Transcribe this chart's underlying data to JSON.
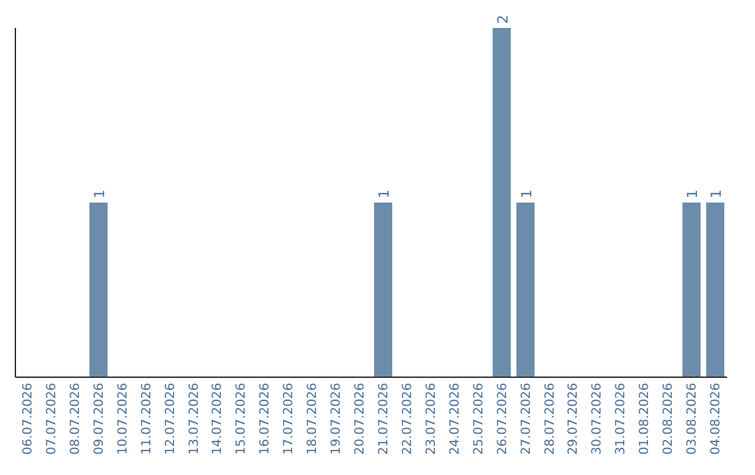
{
  "chart_data": {
    "type": "bar",
    "categories": [
      "06.07.2026",
      "07.07.2026",
      "08.07.2026",
      "09.07.2026",
      "10.07.2026",
      "11.07.2026",
      "12.07.2026",
      "13.07.2026",
      "14.07.2026",
      "15.07.2026",
      "16.07.2026",
      "17.07.2026",
      "18.07.2026",
      "19.07.2026",
      "20.07.2026",
      "21.07.2026",
      "22.07.2026",
      "23.07.2026",
      "24.07.2026",
      "25.07.2026",
      "26.07.2026",
      "27.07.2026",
      "28.07.2026",
      "29.07.2026",
      "30.07.2026",
      "31.07.2026",
      "01.08.2026",
      "02.08.2026",
      "03.08.2026",
      "04.08.2026"
    ],
    "values": [
      0,
      0,
      0,
      1,
      0,
      0,
      0,
      0,
      0,
      0,
      0,
      0,
      0,
      0,
      0,
      1,
      0,
      0,
      0,
      0,
      2,
      1,
      0,
      0,
      0,
      0,
      0,
      0,
      1,
      1
    ],
    "value_labels": [
      null,
      null,
      null,
      "1",
      null,
      null,
      null,
      null,
      null,
      null,
      null,
      null,
      null,
      null,
      null,
      "1",
      null,
      null,
      null,
      null,
      "2",
      "1",
      null,
      null,
      null,
      null,
      null,
      null,
      "1",
      "1"
    ],
    "color": "#6b8cab",
    "tick_labels": "x"
  }
}
